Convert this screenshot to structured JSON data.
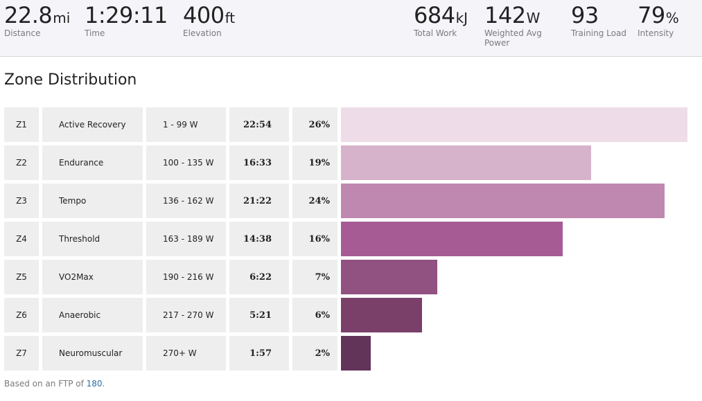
{
  "stats": [
    {
      "id": "distance",
      "value": "22.8",
      "unit": "mi",
      "label": "Distance"
    },
    {
      "id": "time",
      "value": "1:29:11",
      "unit": "",
      "label": "Time"
    },
    {
      "id": "elevation",
      "value": "400",
      "unit": "ft",
      "label": "Elevation"
    },
    {
      "id": "total-work",
      "value": "684",
      "unit": "kJ",
      "label": "Total Work"
    },
    {
      "id": "weighted-avg-power",
      "value": "142",
      "unit": "W",
      "label": "Weighted Avg Power"
    },
    {
      "id": "training-load",
      "value": "93",
      "unit": "",
      "label": "Training Load"
    },
    {
      "id": "intensity",
      "value": "79",
      "unit": "%",
      "label": "Intensity"
    }
  ],
  "zone_distribution": {
    "title": "Zone Distribution",
    "zones": [
      {
        "code": "Z1",
        "name": "Active Recovery",
        "range": "1 - 99 W",
        "time": "22:54",
        "percent": "26%",
        "fraction": 1.0,
        "color": "#eedde8"
      },
      {
        "code": "Z2",
        "name": "Endurance",
        "range": "100 - 135 W",
        "time": "16:33",
        "percent": "19%",
        "fraction": 0.722,
        "color": "#d7b2cb"
      },
      {
        "code": "Z3",
        "name": "Tempo",
        "range": "136 - 162 W",
        "time": "21:22",
        "percent": "24%",
        "fraction": 0.934,
        "color": "#bf88b0"
      },
      {
        "code": "Z4",
        "name": "Threshold",
        "range": "163 - 189 W",
        "time": "14:38",
        "percent": "16%",
        "fraction": 0.64,
        "color": "#a65b95"
      },
      {
        "code": "Z5",
        "name": "VO2Max",
        "range": "190 - 216 W",
        "time": "6:22",
        "percent": "7%",
        "fraction": 0.278,
        "color": "#915181"
      },
      {
        "code": "Z6",
        "name": "Anaerobic",
        "range": "217 - 270 W",
        "time": "5:21",
        "percent": "6%",
        "fraction": 0.234,
        "color": "#7a4069"
      },
      {
        "code": "Z7",
        "name": "Neuromuscular",
        "range": "270+ W",
        "time": "1:57",
        "percent": "2%",
        "fraction": 0.086,
        "color": "#63345a"
      }
    ]
  },
  "footnote": {
    "prefix": "Based on an FTP of ",
    "ftp_value": "180",
    "suffix": "."
  }
}
